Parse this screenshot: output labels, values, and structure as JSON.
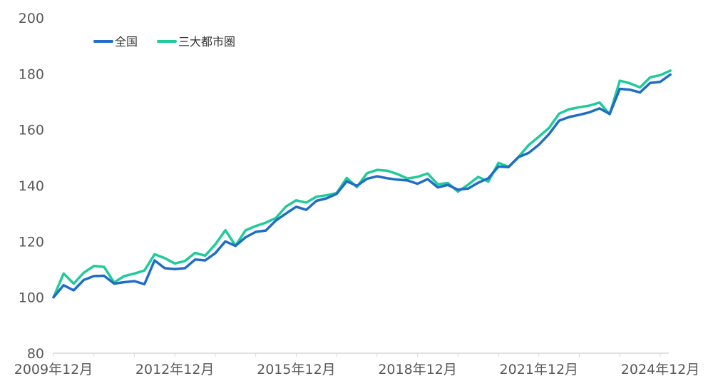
{
  "chart_data": {
    "type": "line",
    "ylim": [
      80,
      200
    ],
    "yticks": [
      80,
      100,
      120,
      140,
      160,
      180,
      200
    ],
    "xtick_labels": [
      "2009年12月",
      "2012年12月",
      "2015年12月",
      "2018年12月",
      "2021年12月",
      "2024年12月"
    ],
    "x_start": "2009年12月",
    "quarters_per_tick": 12,
    "legend_position": "top-left",
    "grid": false,
    "series": [
      {
        "name": "全国",
        "color": "#1F6DC5",
        "values": [
          100.0,
          104.3,
          102.5,
          106.2,
          107.6,
          107.7,
          104.9,
          105.4,
          105.8,
          104.7,
          113.2,
          110.4,
          110.1,
          110.4,
          113.5,
          113.2,
          115.8,
          120.0,
          118.4,
          121.5,
          123.4,
          123.9,
          127.5,
          130.0,
          132.4,
          131.3,
          134.5,
          135.4,
          137.0,
          141.5,
          139.9,
          142.4,
          143.3,
          142.6,
          142.1,
          141.8,
          140.6,
          142.3,
          139.3,
          140.2,
          138.5,
          138.9,
          141.0,
          142.6,
          146.8,
          146.6,
          150.2,
          151.7,
          154.6,
          158.4,
          163.2,
          164.5,
          165.3,
          166.2,
          167.6,
          165.6,
          174.6,
          174.3,
          173.3,
          176.7,
          177.1,
          179.7
        ]
      },
      {
        "name": "三大都市圏",
        "color": "#1FCB9A",
        "values": [
          100.0,
          108.5,
          104.9,
          108.8,
          111.2,
          110.9,
          105.3,
          107.6,
          108.5,
          109.6,
          115.4,
          114.0,
          112.1,
          113.0,
          115.9,
          114.9,
          118.9,
          124.0,
          118.5,
          124.0,
          125.5,
          126.7,
          128.4,
          132.5,
          134.7,
          133.9,
          136.0,
          136.5,
          137.3,
          142.7,
          139.4,
          144.4,
          145.6,
          145.3,
          144.1,
          142.5,
          143.1,
          144.3,
          140.4,
          140.9,
          137.8,
          140.3,
          143.1,
          141.4,
          148.1,
          146.7,
          150.3,
          154.5,
          157.5,
          160.6,
          165.7,
          167.3,
          168.0,
          168.6,
          169.7,
          165.5,
          177.5,
          176.6,
          175.1,
          178.7,
          179.5,
          181.1
        ]
      }
    ]
  }
}
